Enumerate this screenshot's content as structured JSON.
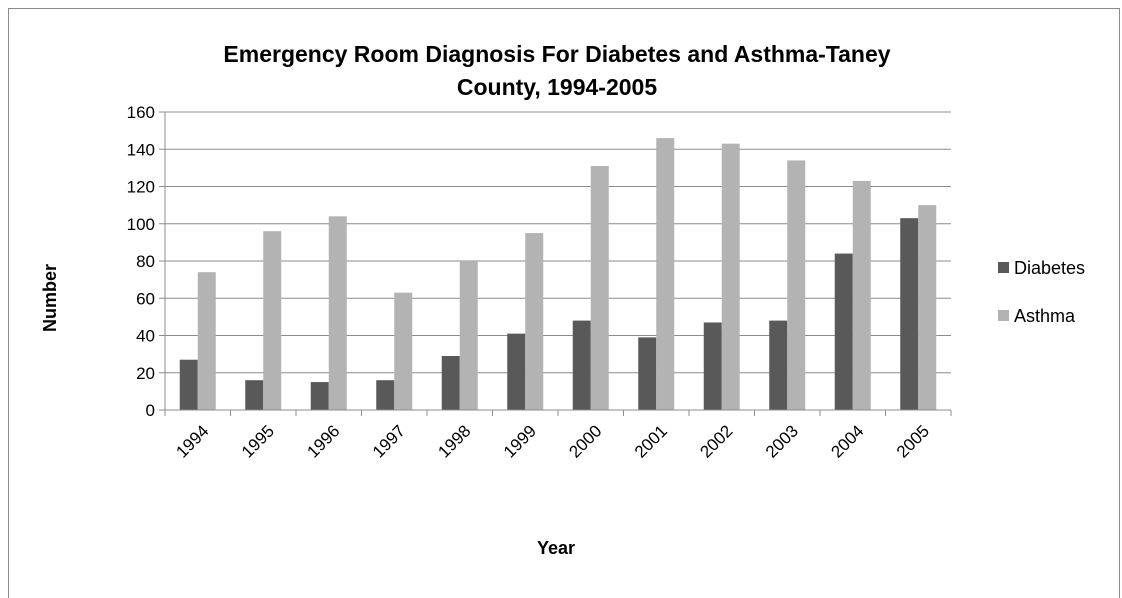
{
  "chart_data": {
    "type": "bar",
    "title": "Emergency Room Diagnosis For  Diabetes and Asthma-Taney County, 1994-2005",
    "title_lines": [
      "Emergency Room Diagnosis For  Diabetes and Asthma-Taney",
      "County, 1994-2005"
    ],
    "xlabel": "Year",
    "ylabel": "Number",
    "categories": [
      "1994",
      "1995",
      "1996",
      "1997",
      "1998",
      "1999",
      "2000",
      "2001",
      "2002",
      "2003",
      "2004",
      "2005"
    ],
    "ylim": [
      0,
      160
    ],
    "yticks": [
      0,
      20,
      40,
      60,
      80,
      100,
      120,
      140,
      160
    ],
    "grid": true,
    "legend_position": "right",
    "series": [
      {
        "name": "Diabetes",
        "color": "#595959",
        "values": [
          27,
          16,
          15,
          16,
          29,
          41,
          48,
          39,
          47,
          48,
          84,
          103
        ]
      },
      {
        "name": "Asthma",
        "color": "#b3b3b3",
        "values": [
          74,
          96,
          104,
          63,
          80,
          95,
          131,
          146,
          143,
          134,
          123,
          110
        ]
      }
    ]
  }
}
